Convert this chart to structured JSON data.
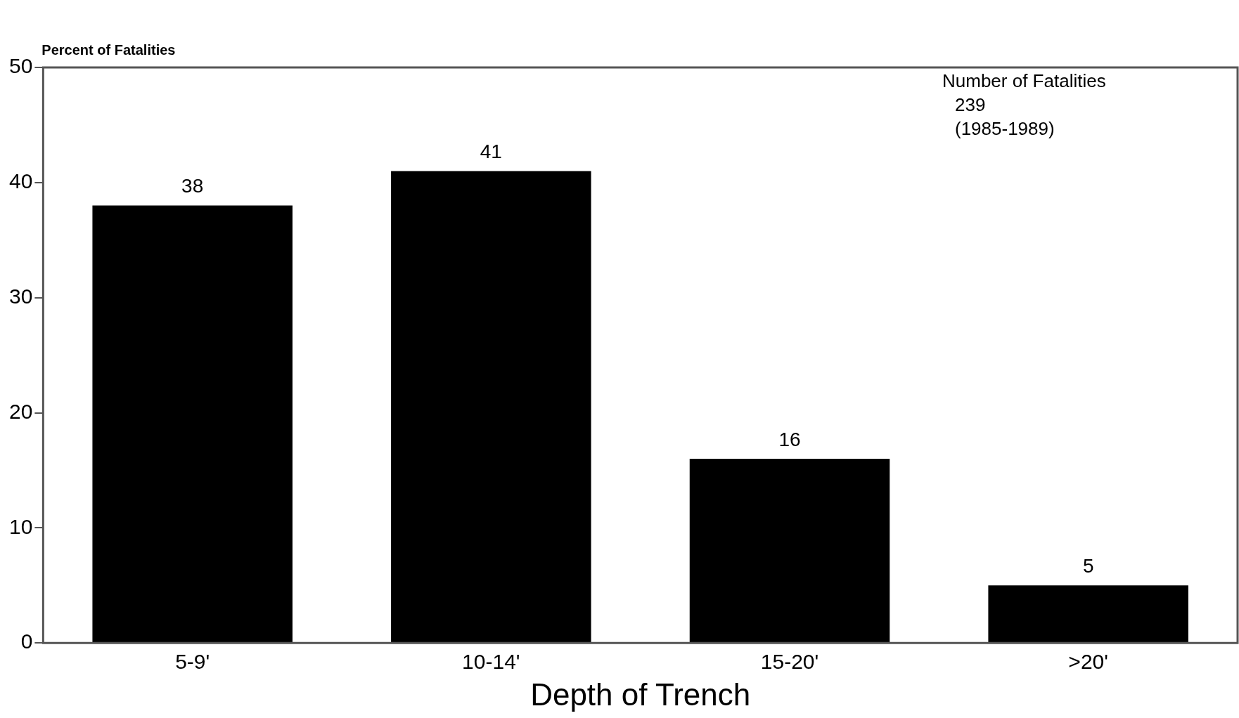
{
  "chart_data": {
    "type": "bar",
    "xlabel": "Depth of Trench",
    "ylabel": "Percent of Fatalities",
    "categories": [
      "5-9'",
      "10-14'",
      "15-20'",
      ">20'"
    ],
    "values": [
      38,
      41,
      16,
      5
    ],
    "color": "#000000",
    "ylim": [
      0,
      50
    ],
    "yticks": [
      0,
      10,
      20,
      30,
      40,
      50
    ],
    "grid": false,
    "data_labels": true,
    "annotations": [
      "Number of Fatalities",
      "239",
      "(1985-1989)"
    ]
  }
}
